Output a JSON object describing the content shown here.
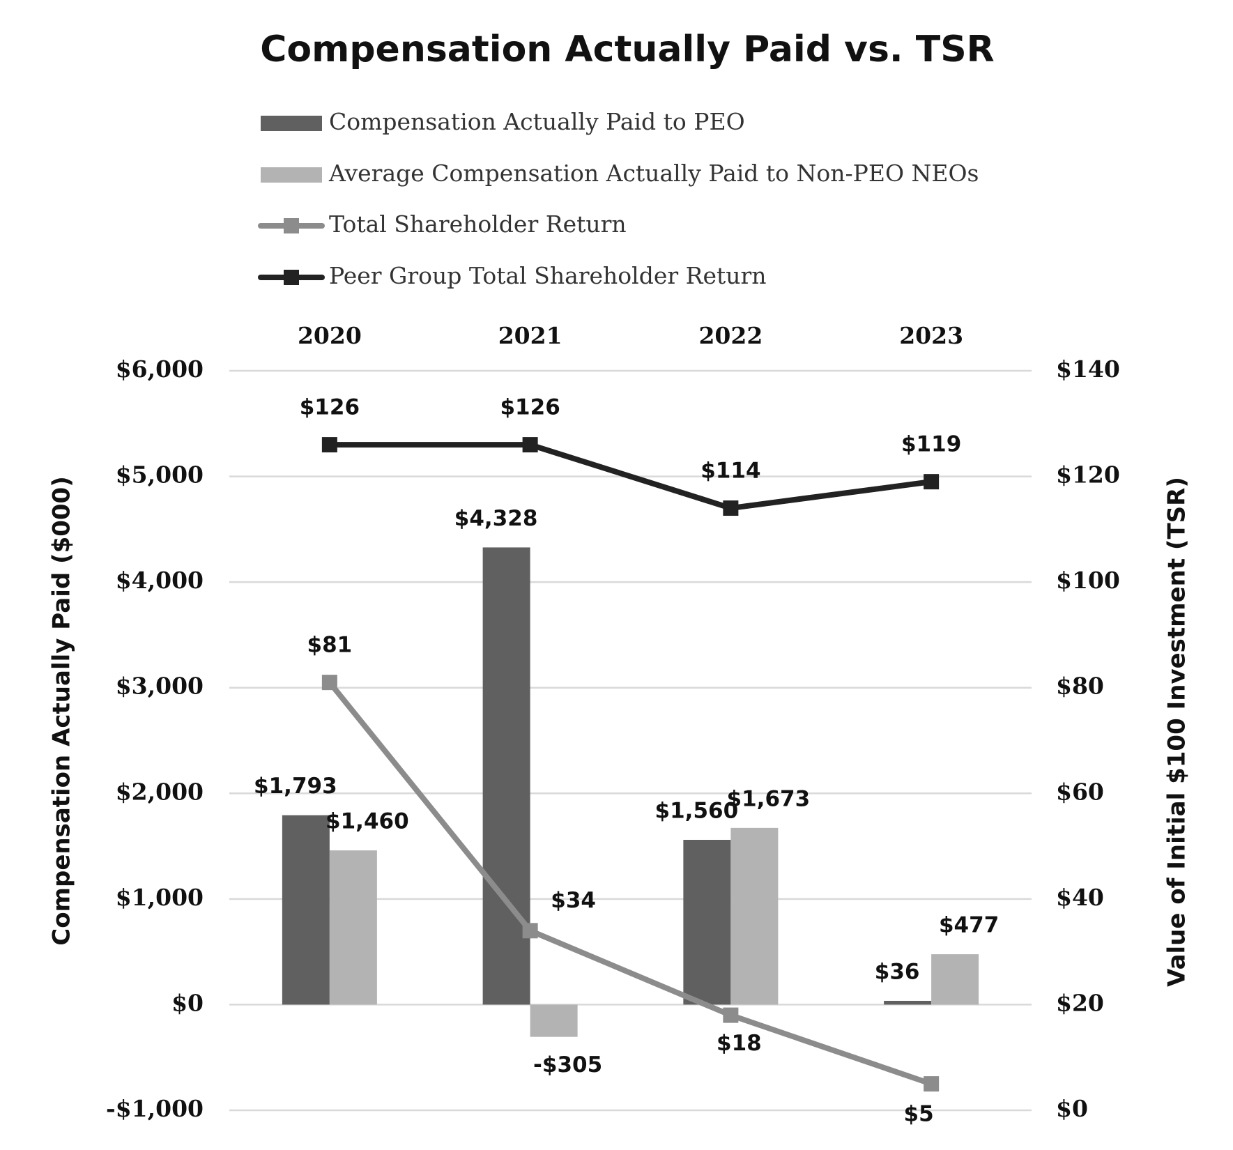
{
  "chart_data": {
    "type": "bar_line",
    "title": "Compensation Actually Paid vs. TSR",
    "categories": [
      "2020",
      "2021",
      "2022",
      "2023"
    ],
    "ylabel": "Compensation Actually Paid ($000)",
    "y2label": "Value of Initial $100 Investment (TSR)",
    "ylim": [
      -1000,
      6000
    ],
    "yticks": [
      {
        "value": -1000,
        "label": "-$1,000"
      },
      {
        "value": 0,
        "label": "$0"
      },
      {
        "value": 1000,
        "label": "$1,000"
      },
      {
        "value": 2000,
        "label": "$2,000"
      },
      {
        "value": 3000,
        "label": "$3,000"
      },
      {
        "value": 4000,
        "label": "$4,000"
      },
      {
        "value": 5000,
        "label": "$5,000"
      },
      {
        "value": 6000,
        "label": "$6,000"
      }
    ],
    "y2lim": [
      0,
      140
    ],
    "y2ticks": [
      {
        "value": 0,
        "label": "$0"
      },
      {
        "value": 20,
        "label": "$20"
      },
      {
        "value": 40,
        "label": "$40"
      },
      {
        "value": 60,
        "label": "$60"
      },
      {
        "value": 80,
        "label": "$80"
      },
      {
        "value": 100,
        "label": "$100"
      },
      {
        "value": 120,
        "label": "$120"
      },
      {
        "value": 140,
        "label": "$140"
      }
    ],
    "grid": true,
    "series": [
      {
        "name": "Compensation Actually Paid to PEO",
        "kind": "bar",
        "color": "#606060",
        "values": [
          1793,
          4328,
          1560,
          36
        ],
        "value_labels": [
          "$1,793",
          "$4,328",
          "$1,560",
          "$36"
        ]
      },
      {
        "name": "Average Compensation Actually Paid to Non-PEO NEOs",
        "kind": "bar",
        "color": "#b3b3b3",
        "values": [
          1460,
          -305,
          1673,
          477
        ],
        "value_labels": [
          "$1,460",
          "-$305",
          "$1,673",
          "$477"
        ]
      },
      {
        "name": "Total Shareholder Return",
        "kind": "line",
        "axis": "y2",
        "color": "#8c8c8c",
        "values": [
          81,
          34,
          18,
          5
        ],
        "value_labels": [
          "$81",
          "$34",
          "$18",
          "$5"
        ]
      },
      {
        "name": "Peer Group Total Shareholder Return",
        "kind": "line",
        "axis": "y2",
        "color": "#222222",
        "values": [
          126,
          126,
          114,
          119
        ],
        "value_labels": [
          "$126",
          "$126",
          "$114",
          "$119"
        ]
      }
    ]
  }
}
